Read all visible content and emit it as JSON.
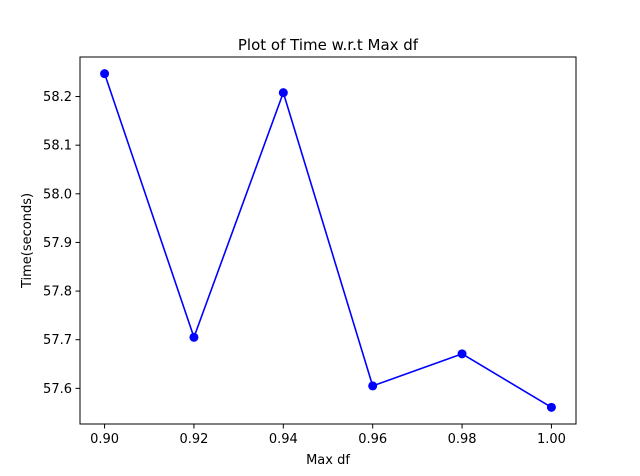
{
  "chart_data": {
    "type": "line",
    "title": "Plot of Time w.r.t Max df",
    "xlabel": "Max df",
    "ylabel": "Time(seconds)",
    "x": [
      0.9,
      0.92,
      0.94,
      0.96,
      0.98,
      1.0
    ],
    "series": [
      {
        "values": [
          58.247,
          57.705,
          58.208,
          57.605,
          57.671,
          57.561
        ],
        "color": "#0000ff",
        "marker": "circle"
      }
    ],
    "xlim": [
      0.8945,
      1.0055
    ],
    "ylim": [
      57.5267,
      58.2813
    ],
    "xticks": [
      0.9,
      0.92,
      0.94,
      0.96,
      0.98,
      1.0
    ],
    "xtick_labels": [
      "0.90",
      "0.92",
      "0.94",
      "0.96",
      "0.98",
      "1.00"
    ],
    "yticks": [
      57.6,
      57.7,
      57.8,
      57.9,
      58.0,
      58.1,
      58.2
    ],
    "ytick_labels": [
      "57.6",
      "57.7",
      "57.8",
      "57.9",
      "58.0",
      "58.1",
      "58.2"
    ],
    "grid": false,
    "legend": false
  }
}
